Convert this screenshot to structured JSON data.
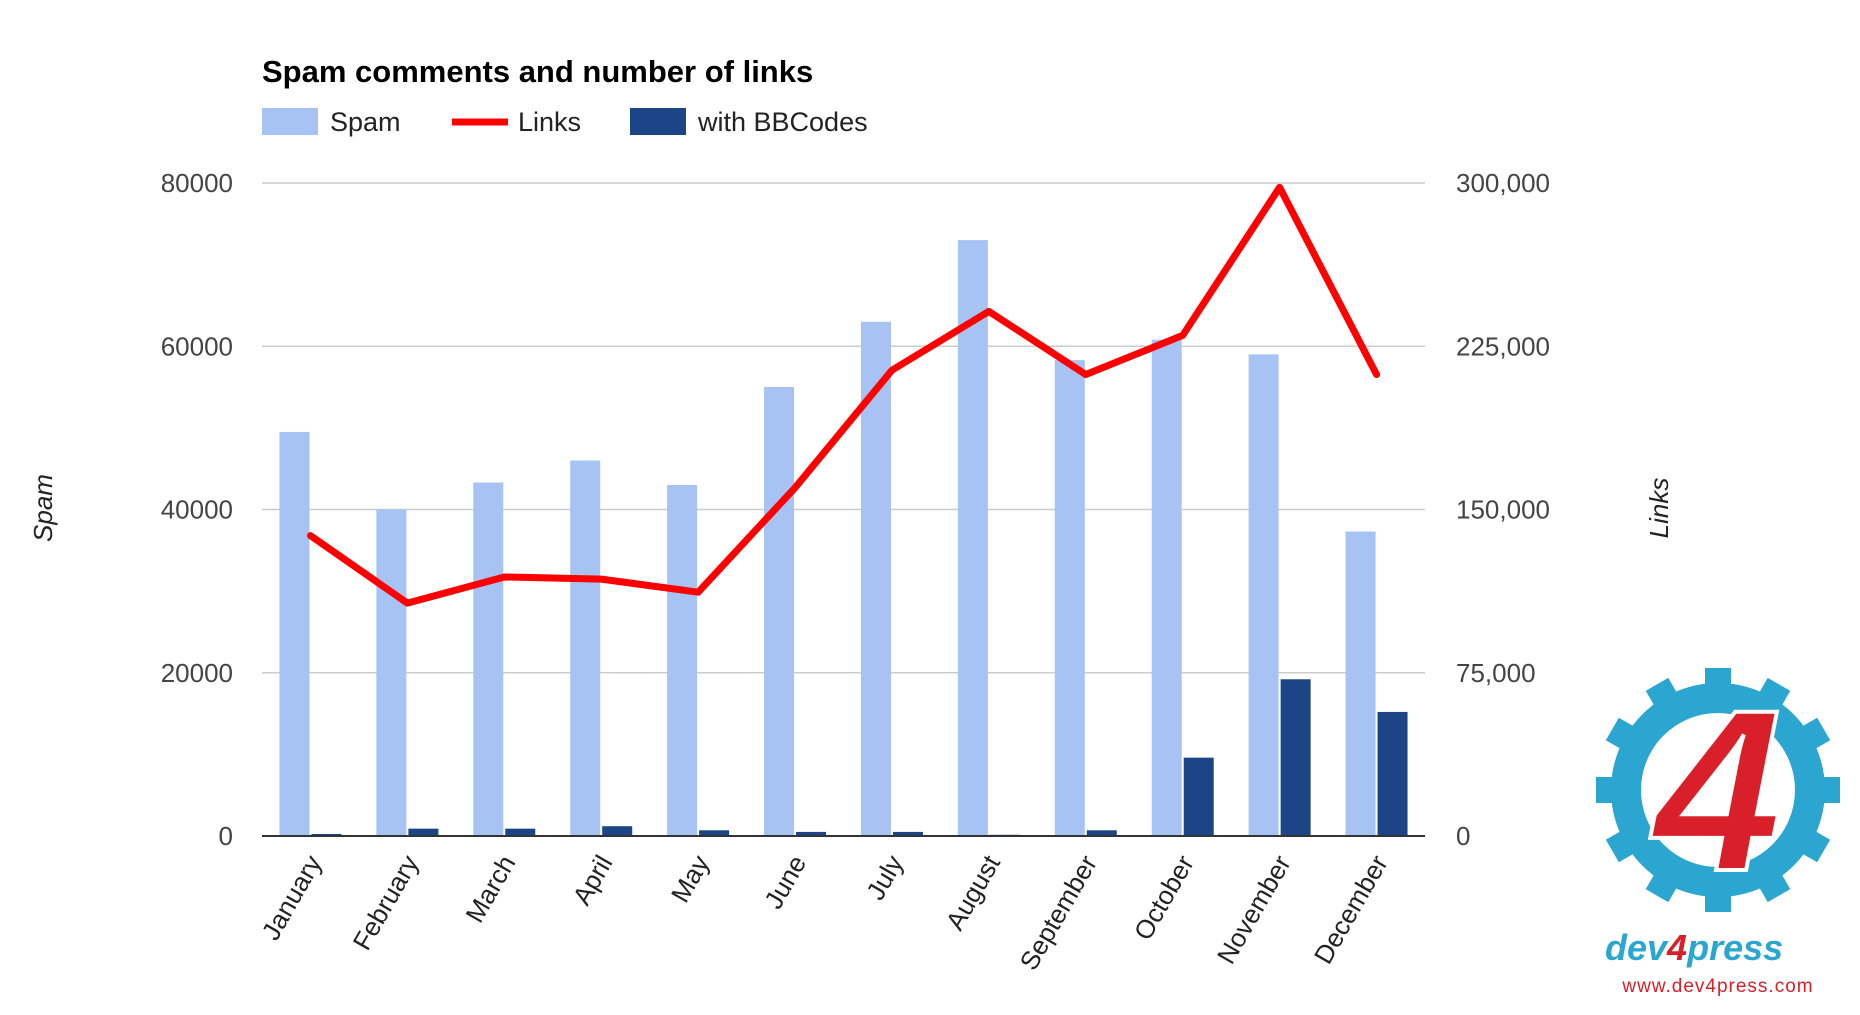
{
  "chart_data": {
    "type": "bar",
    "title": "Spam comments and number of links",
    "categories": [
      "January",
      "February",
      "March",
      "April",
      "May",
      "June",
      "July",
      "August",
      "September",
      "October",
      "November",
      "December"
    ],
    "series": [
      {
        "name": "Spam",
        "kind": "bar",
        "axis": "left",
        "color": "#a6c3f3",
        "values": [
          49500,
          40000,
          43300,
          46000,
          43000,
          55000,
          63000,
          73000,
          58300,
          60800,
          59000,
          37300
        ]
      },
      {
        "name": "Links",
        "kind": "line",
        "axis": "right",
        "color": "#ff0000",
        "values": [
          138000,
          107000,
          119000,
          118000,
          112000,
          160000,
          214000,
          241000,
          212000,
          230000,
          298000,
          212000
        ]
      },
      {
        "name": "with BBCodes",
        "kind": "bar",
        "axis": "left",
        "color": "#1c4587",
        "values": [
          250,
          900,
          900,
          1200,
          700,
          500,
          500,
          150,
          700,
          9600,
          19200,
          15200
        ]
      }
    ],
    "ylabel_left": "Spam",
    "ylabel_right": "Links",
    "ylim_left": [
      0,
      80000
    ],
    "ylim_right": [
      0,
      300000
    ],
    "yticks_left": [
      "0",
      "20000",
      "40000",
      "60000",
      "80000"
    ],
    "yticks_right": [
      "0",
      "75,000",
      "150,000",
      "225,000",
      "300,000"
    ],
    "grid": true,
    "legend_position": "top-left"
  },
  "logo": {
    "mark": "4",
    "name_a": "dev",
    "name_b": "4",
    "name_c": "press",
    "url": "www.dev4press.com",
    "gear_color": "#2aa6d0",
    "red_color": "#d9202a"
  }
}
